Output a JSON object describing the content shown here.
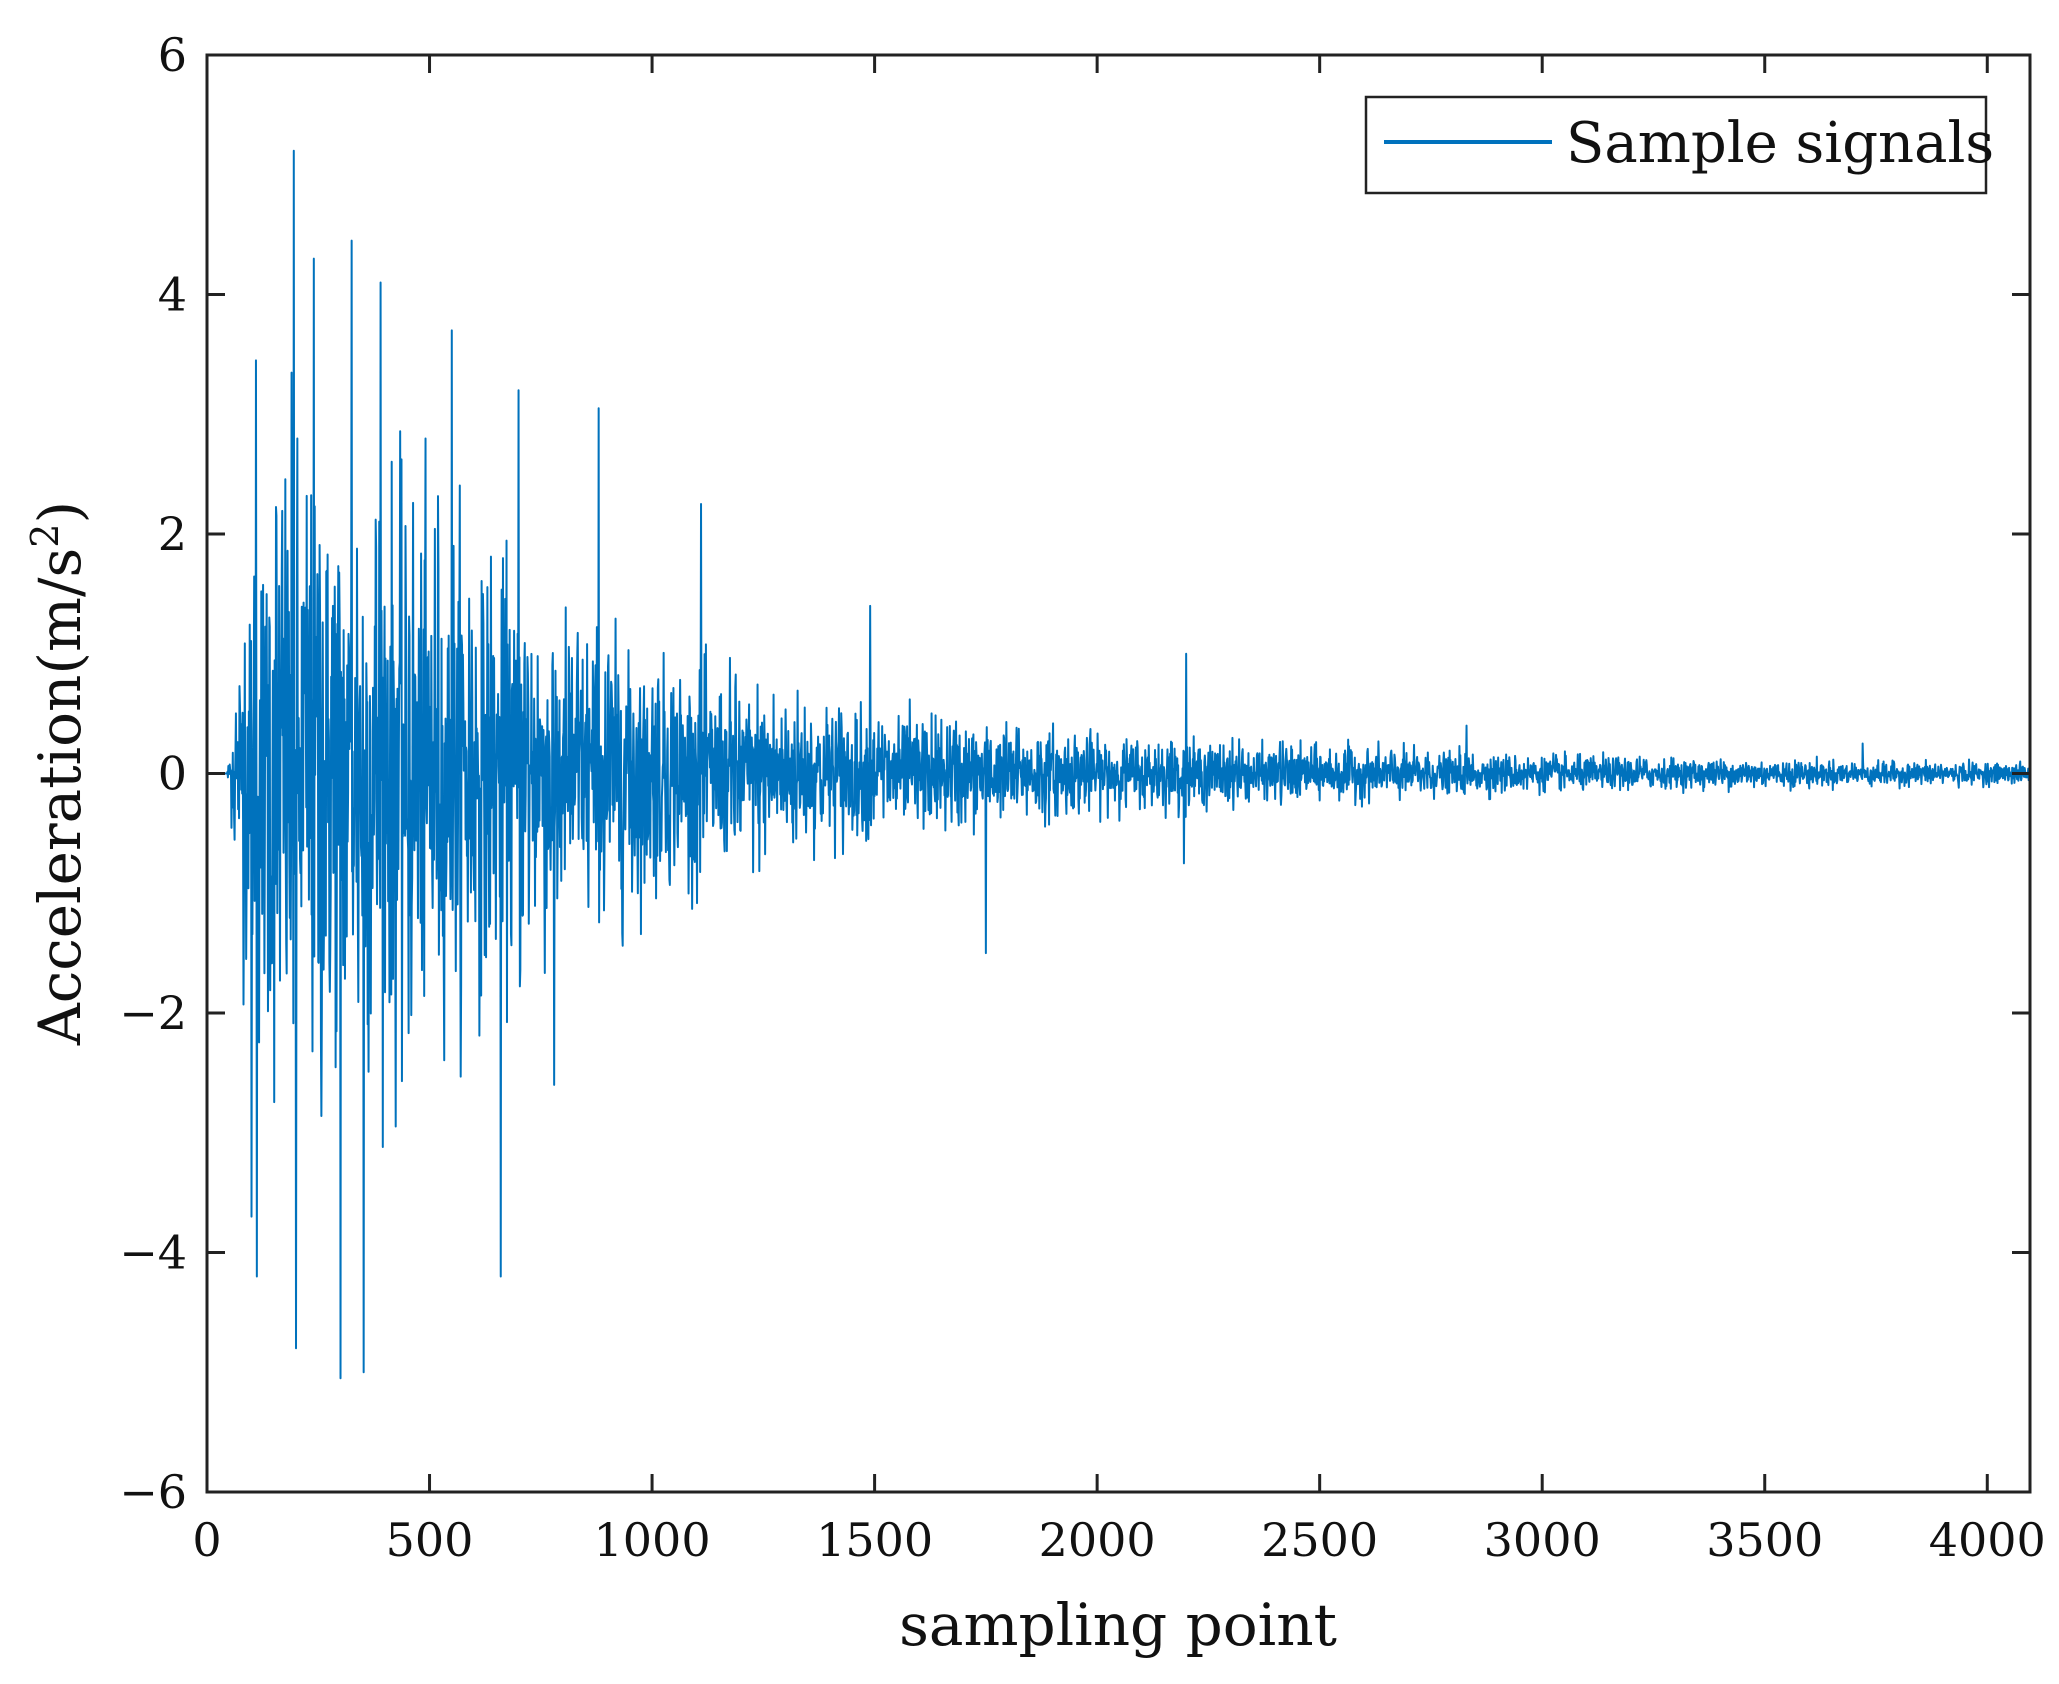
{
  "chart_data": {
    "type": "line",
    "xlabel": "sampling point",
    "ylabel": "Acceleration(m/s",
    "ylabel_superscript": "2",
    "ylabel_suffix": ")",
    "xlim": [
      0,
      4096
    ],
    "ylim": [
      -6,
      6
    ],
    "xticks": [
      0,
      500,
      1000,
      1500,
      2000,
      2500,
      3000,
      3500,
      4000
    ],
    "xtick_labels": [
      "0",
      "500",
      "1000",
      "1500",
      "2000",
      "2500",
      "3000",
      "3500",
      "4000"
    ],
    "yticks": [
      -6,
      -4,
      -2,
      0,
      2,
      4,
      6
    ],
    "ytick_labels": [
      "−6",
      "−4",
      "−2",
      "0",
      "2",
      "4",
      "6"
    ],
    "grid": false,
    "legend_position": "top-right",
    "series": [
      {
        "name": "Sample signals",
        "color": "#0072BD",
        "n_points": 4096,
        "onset_index": 45,
        "envelope": [
          [
            0,
            0
          ],
          [
            45,
            0
          ],
          [
            80,
            1.4
          ],
          [
            150,
            2.4
          ],
          [
            250,
            2.6
          ],
          [
            400,
            2.3
          ],
          [
            600,
            1.8
          ],
          [
            800,
            1.3
          ],
          [
            1000,
            0.95
          ],
          [
            1200,
            0.7
          ],
          [
            1500,
            0.5
          ],
          [
            2000,
            0.3
          ],
          [
            2500,
            0.22
          ],
          [
            3000,
            0.14
          ],
          [
            3500,
            0.11
          ],
          [
            4096,
            0.08
          ]
        ],
        "peaks": [
          {
            "x": 110,
            "y": 3.45
          },
          {
            "x": 112,
            "y": -4.2
          },
          {
            "x": 100,
            "y": -3.7
          },
          {
            "x": 195,
            "y": 5.2
          },
          {
            "x": 200,
            "y": -4.8
          },
          {
            "x": 240,
            "y": 4.3
          },
          {
            "x": 300,
            "y": -5.05
          },
          {
            "x": 325,
            "y": 4.45
          },
          {
            "x": 352,
            "y": -5.0
          },
          {
            "x": 390,
            "y": 4.1
          },
          {
            "x": 550,
            "y": 3.7
          },
          {
            "x": 660,
            "y": -4.2
          },
          {
            "x": 700,
            "y": 3.2
          },
          {
            "x": 780,
            "y": -2.6
          },
          {
            "x": 880,
            "y": 3.05
          },
          {
            "x": 1110,
            "y": 2.25
          },
          {
            "x": 1490,
            "y": 1.4
          },
          {
            "x": 1750,
            "y": -1.5
          },
          {
            "x": 2200,
            "y": 1.0
          },
          {
            "x": 2195,
            "y": -0.75
          },
          {
            "x": 2830,
            "y": 0.4
          },
          {
            "x": 3720,
            "y": 0.25
          }
        ]
      }
    ]
  }
}
